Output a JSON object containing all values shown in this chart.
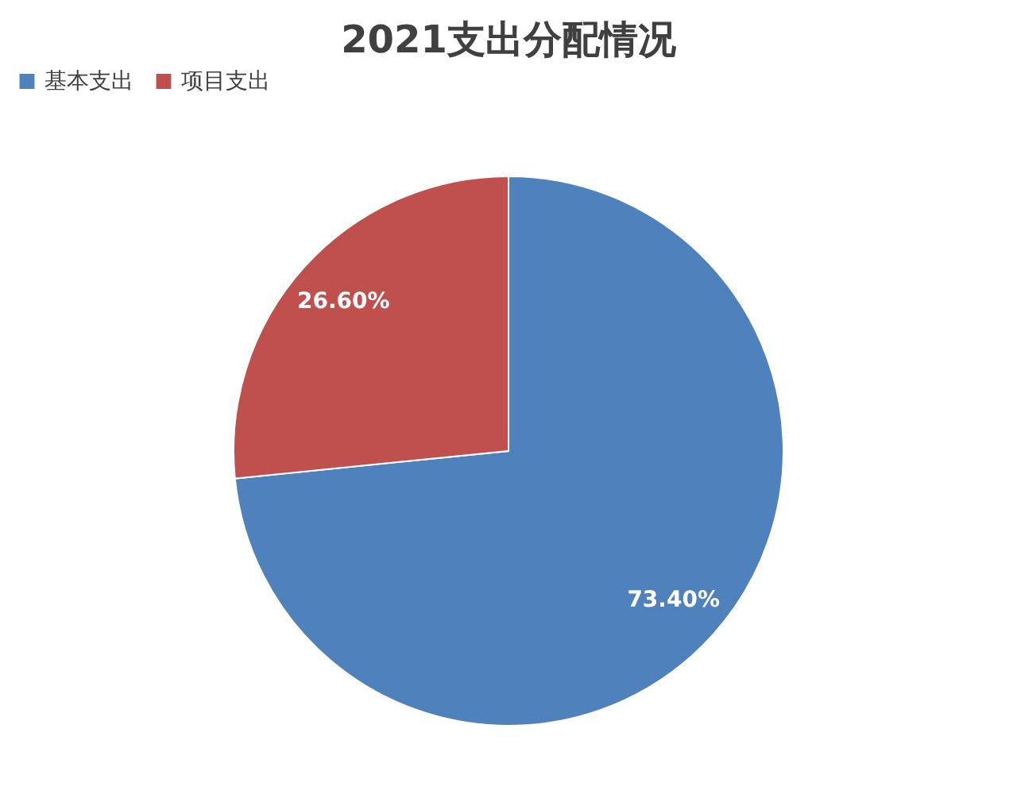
{
  "chart_data": {
    "type": "pie",
    "title": "2021支出分配情况",
    "categories": [
      "基本支出",
      "项目支出"
    ],
    "values": [
      73.4,
      26.6
    ],
    "colors": [
      "#4f81bd",
      "#c0504d"
    ],
    "value_labels": [
      "73.40%",
      "26.60%"
    ],
    "legend": "top"
  }
}
